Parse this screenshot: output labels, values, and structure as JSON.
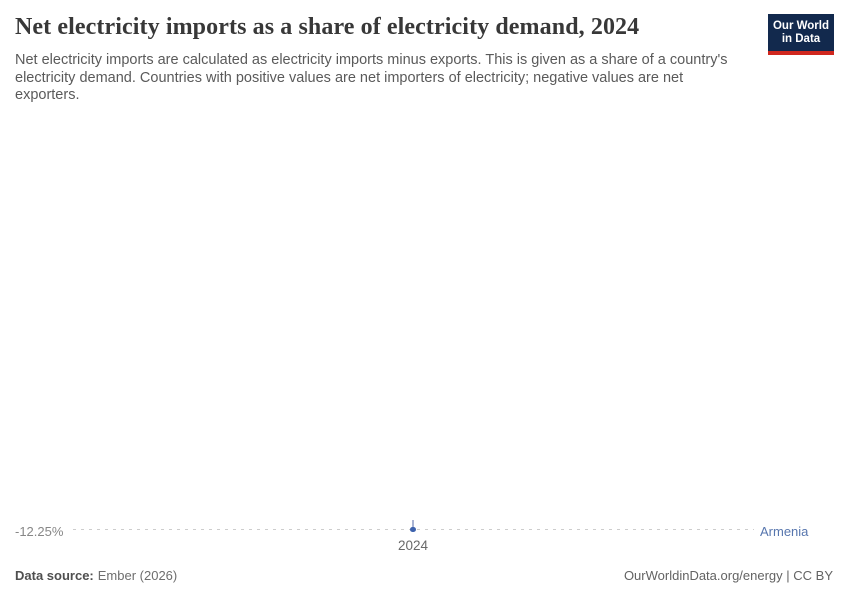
{
  "header": {
    "title": "Net electricity imports as a share of electricity demand, 2024",
    "subtitle_lines": [
      "Net electricity imports are calculated as electricity imports minus exports. This is given as a share of a country's",
      "electricity demand. Countries with positive values are net importers of electricity; negative values are net",
      "exporters."
    ],
    "logo": {
      "line1": "Our World",
      "line2": "in Data"
    }
  },
  "chart": {
    "value_axis_label": "-12.25%",
    "x_tick_label": "2024",
    "entity_label": "Armenia"
  },
  "chart_data": {
    "type": "line",
    "title": "Net electricity imports as a share of electricity demand, 2024",
    "x": [
      2024
    ],
    "series": [
      {
        "name": "Armenia",
        "values": [
          -12.25
        ]
      }
    ],
    "unit": "%",
    "xlabel": "",
    "ylabel": "",
    "grid": false,
    "legend_position": "right",
    "notes": "Single data point: Armenia, 2024, -12.25%. Rendered as a blue dot on a horizontal dashed leader line, value labelled at left, entity name at right."
  },
  "footer": {
    "source_label": "Data source:",
    "source_value": "Ember (2026)",
    "credit": "OurWorldinData.org/energy | CC BY"
  },
  "colors": {
    "series": "#5776ae",
    "point": "#3d62ad",
    "dashed_line": "#cdcdcd",
    "logo_navy": "#12294d",
    "logo_red": "#d0271e",
    "title_text": "#383838",
    "subtitle_text": "#5a5a5a"
  }
}
